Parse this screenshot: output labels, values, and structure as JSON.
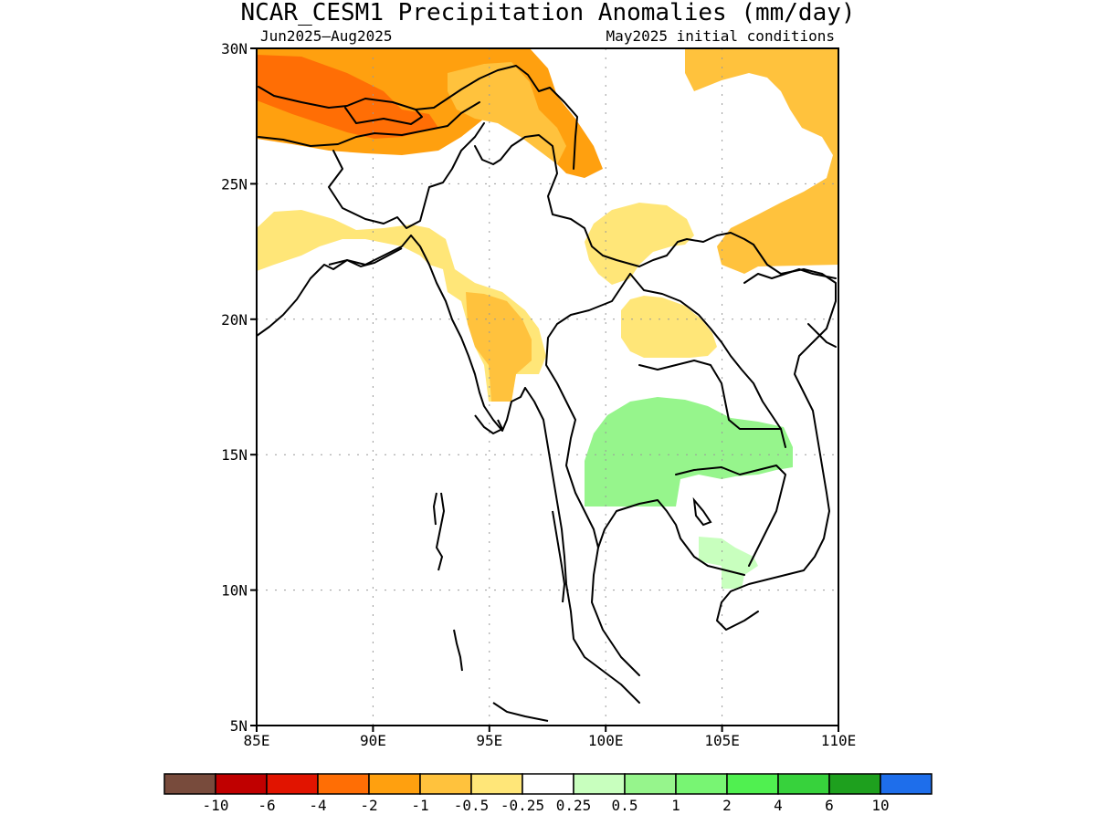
{
  "title": "NCAR_CESM1 Precipitation Anomalies (mm/day)",
  "subtitle_left": "Jun2025–Aug2025",
  "subtitle_right": "May2025 initial conditions",
  "map": {
    "lon_range": [
      85,
      110
    ],
    "lat_range": [
      5,
      30
    ],
    "lon_ticks": [
      "85E",
      "90E",
      "95E",
      "100E",
      "105E",
      "110E"
    ],
    "lat_ticks": [
      "5N",
      "10N",
      "15N",
      "20N",
      "25N",
      "30N"
    ],
    "grid": "dotted",
    "anomaly_regions": [
      {
        "name": "tibet-south-nepal",
        "category": "-1",
        "color": "#ffa00f"
      },
      {
        "name": "nepal-core",
        "category": "-2",
        "color": "#ff6e05"
      },
      {
        "name": "southeast-tibet",
        "category": "-0.5",
        "color": "#ffc23d"
      },
      {
        "name": "bay-bengal-north",
        "category": "-0.25",
        "color": "#ffe678"
      },
      {
        "name": "myanmar-west",
        "category": "-0.5",
        "color": "#ffc23d"
      },
      {
        "name": "yunnan",
        "category": "-0.25",
        "color": "#ffe678"
      },
      {
        "name": "laos-north",
        "category": "-0.25",
        "color": "#ffe678"
      },
      {
        "name": "south-china",
        "category": "-0.5",
        "color": "#ffc23d"
      },
      {
        "name": "thailand-cambodia",
        "category": "0.5",
        "color": "#96f58c"
      },
      {
        "name": "mekong-delta",
        "category": "0.25",
        "color": "#c8ffbe"
      }
    ]
  },
  "legend": {
    "colors": [
      "#784b3c",
      "#c00000",
      "#e11400",
      "#ff6e05",
      "#ffa00f",
      "#ffc23d",
      "#ffe678",
      "#ffffff",
      "#c8ffbe",
      "#96f58c",
      "#78f573",
      "#50f050",
      "#37d23c",
      "#1ea01e",
      "#1e6eeb"
    ],
    "labels": [
      "-10",
      "-6",
      "-4",
      "-2",
      "-1",
      "-0.5",
      "-0.25",
      "0.25",
      "0.5",
      "1",
      "2",
      "4",
      "6",
      "10"
    ]
  }
}
